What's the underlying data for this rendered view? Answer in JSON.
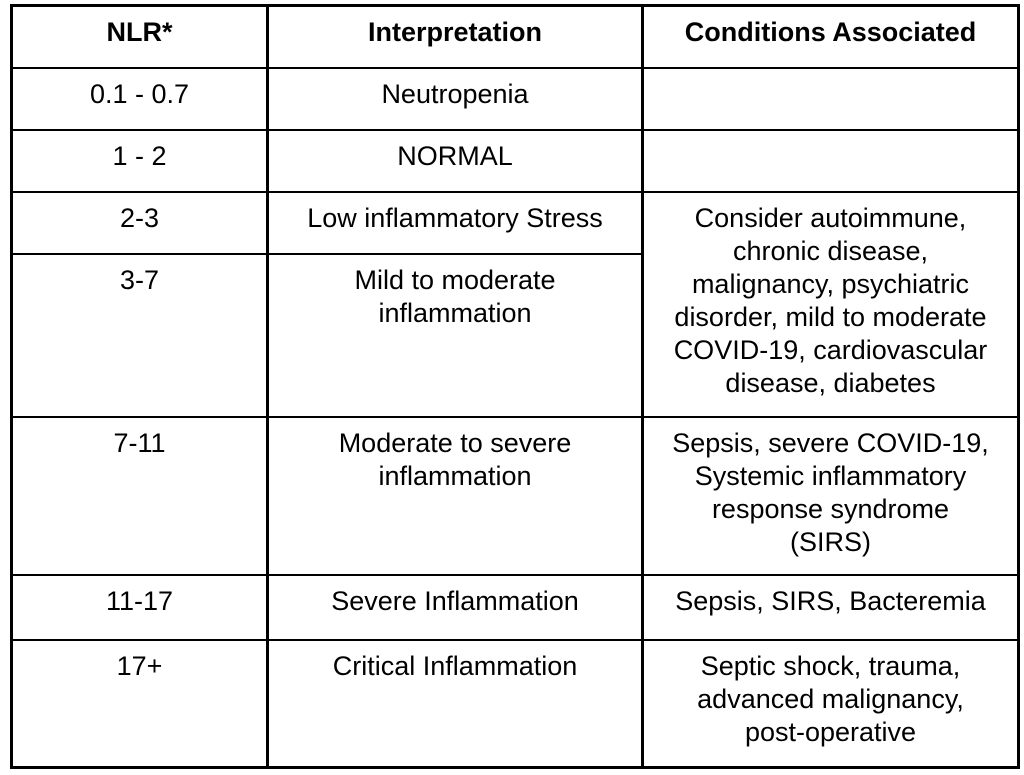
{
  "colors": {
    "background": "#ffffff",
    "border": "#000000",
    "text": "#000000"
  },
  "table": {
    "headers": [
      "NLR*",
      "Interpretation",
      "Conditions Associated"
    ],
    "rows": [
      {
        "nlr": "0.1 - 0.7",
        "interpretation": "Neutropenia",
        "conditions": ""
      },
      {
        "nlr": "1 - 2",
        "interpretation": "NORMAL",
        "conditions": ""
      },
      {
        "nlr": "2-3",
        "interpretation": "Low inflammatory Stress",
        "conditions": "Consider autoimmune,\nchronic disease,\nmalignancy, psychiatric\ndisorder, mild to moderate\nCOVID-19, cardiovascular\ndisease, diabetes"
      },
      {
        "nlr": "3-7",
        "interpretation": "Mild to moderate\ninflammation"
      },
      {
        "nlr": "7-11",
        "interpretation": "Moderate to severe\ninflammation",
        "conditions": "Sepsis, severe COVID-19,\nSystemic inflammatory\nresponse syndrome\n(SIRS)"
      },
      {
        "nlr": "11-17",
        "interpretation": "Severe Inflammation",
        "conditions": "Sepsis, SIRS, Bacteremia"
      },
      {
        "nlr": "17+",
        "interpretation": "Critical Inflammation",
        "conditions": "Septic shock, trauma,\nadvanced malignancy,\npost-operative"
      }
    ]
  }
}
